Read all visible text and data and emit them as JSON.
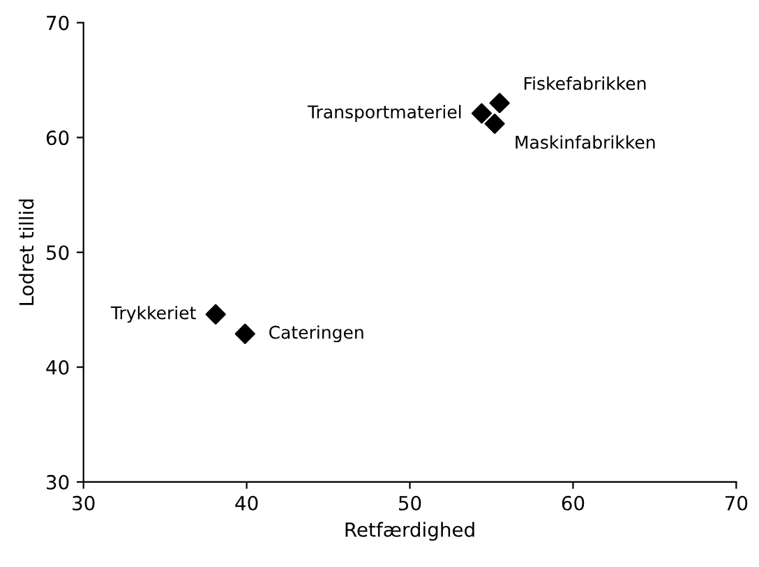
{
  "chart_data": {
    "type": "scatter",
    "xlabel": "Retfærdighed",
    "ylabel": "Lodret tillid",
    "x": [
      38.1,
      39.9,
      54.4,
      55.5,
      55.2
    ],
    "series": [
      {
        "color": "#000000",
        "values": [
          44.6,
          42.9,
          62.1,
          63.0,
          61.2
        ]
      }
    ],
    "marker": "diamond",
    "grid": false,
    "legend": false,
    "xlim": [
      30,
      70
    ],
    "ylim": [
      30,
      70
    ],
    "xticks": [
      30,
      40,
      50,
      60,
      70
    ],
    "yticks": [
      30,
      40,
      50,
      60,
      70
    ],
    "annotations": [
      {
        "text": "Trykkeriet",
        "x": 38.1,
        "y": 44.6
      },
      {
        "text": "Cateringen",
        "x": 39.9,
        "y": 42.9
      },
      {
        "text": "Transportmateriel",
        "x": 54.4,
        "y": 62.1
      },
      {
        "text": "Fiskefabrikken",
        "x": 55.5,
        "y": 63.0
      },
      {
        "text": "Maskinfabrikken",
        "x": 55.2,
        "y": 61.2
      }
    ]
  }
}
